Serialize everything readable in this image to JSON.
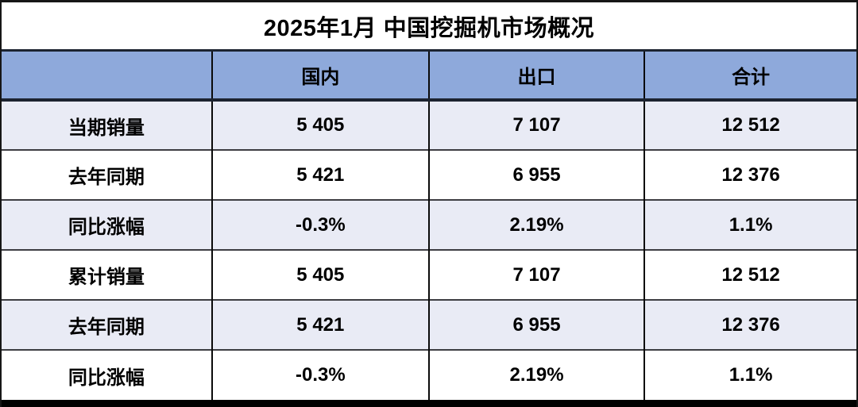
{
  "title": "2025年1月 中国挖掘机市场概况",
  "chart_data": {
    "type": "table",
    "title": "2025年1月 中国挖掘机市场概况",
    "columns": [
      "",
      "国内",
      "出口",
      "合计"
    ],
    "rows": [
      {
        "label": "当期销量",
        "values": [
          "5 405",
          "7 107",
          "12 512"
        ]
      },
      {
        "label": "去年同期",
        "values": [
          "5 421",
          "6 955",
          "12 376"
        ]
      },
      {
        "label": "同比涨幅",
        "values": [
          "-0.3%",
          "2.19%",
          "1.1%"
        ]
      },
      {
        "label": "累计销量",
        "values": [
          "5 405",
          "7 107",
          "12 512"
        ]
      },
      {
        "label": "去年同期",
        "values": [
          "5 421",
          "6 955",
          "12 376"
        ]
      },
      {
        "label": "同比涨幅",
        "values": [
          "-0.3%",
          "2.19%",
          "1.1%"
        ]
      }
    ],
    "layout_hints": {
      "banded_rows": true,
      "band_colors": [
        "#E9EBF5",
        "#FFFFFF"
      ],
      "header_bg": "#8EA9DB",
      "border_color": "#000000"
    }
  },
  "colors": {
    "header_bg": "#8EA9DB",
    "band_bg": "#E9EBF5",
    "row_bg": "#FFFFFF",
    "border": "#000000",
    "text": "#000000"
  }
}
